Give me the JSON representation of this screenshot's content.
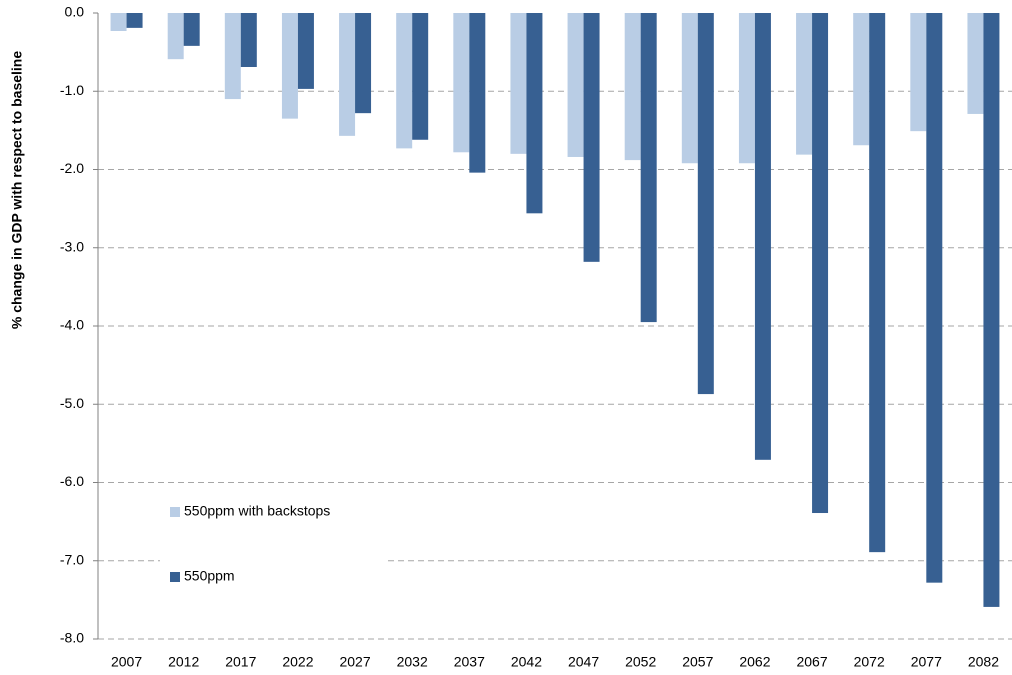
{
  "chart_data": {
    "type": "bar",
    "y_label": "% change in GDP with respect to baseline",
    "categories": [
      "2007",
      "2012",
      "2017",
      "2022",
      "2027",
      "2032",
      "2037",
      "2042",
      "2047",
      "2052",
      "2057",
      "2062",
      "2067",
      "2072",
      "2077",
      "2082"
    ],
    "series": [
      {
        "name": "550ppm with backstops",
        "color": "#b9cde5",
        "values": [
          -0.23,
          -0.59,
          -1.1,
          -1.35,
          -1.57,
          -1.73,
          -1.78,
          -1.8,
          -1.84,
          -1.88,
          -1.92,
          -1.92,
          -1.81,
          -1.69,
          -1.51,
          -1.29
        ]
      },
      {
        "name": "550ppm",
        "color": "#376092",
        "values": [
          -0.19,
          -0.42,
          -0.69,
          -0.97,
          -1.28,
          -1.62,
          -2.04,
          -2.56,
          -3.18,
          -3.95,
          -4.87,
          -5.71,
          -6.39,
          -6.89,
          -7.28,
          -7.59
        ]
      }
    ],
    "ylim": [
      -8,
      0
    ],
    "yticks": [
      {
        "value": 0,
        "label": "0.0"
      },
      {
        "value": -1,
        "label": "-1.0"
      },
      {
        "value": -2,
        "label": "-2.0"
      },
      {
        "value": -3,
        "label": "-3.0"
      },
      {
        "value": -4,
        "label": "-4.0"
      },
      {
        "value": -5,
        "label": "-5.0"
      },
      {
        "value": -6,
        "label": "-6.0"
      },
      {
        "value": -7,
        "label": "-7.0"
      },
      {
        "value": -8,
        "label": "-8.0"
      }
    ],
    "grid": true,
    "legend_position": "lower-left"
  }
}
